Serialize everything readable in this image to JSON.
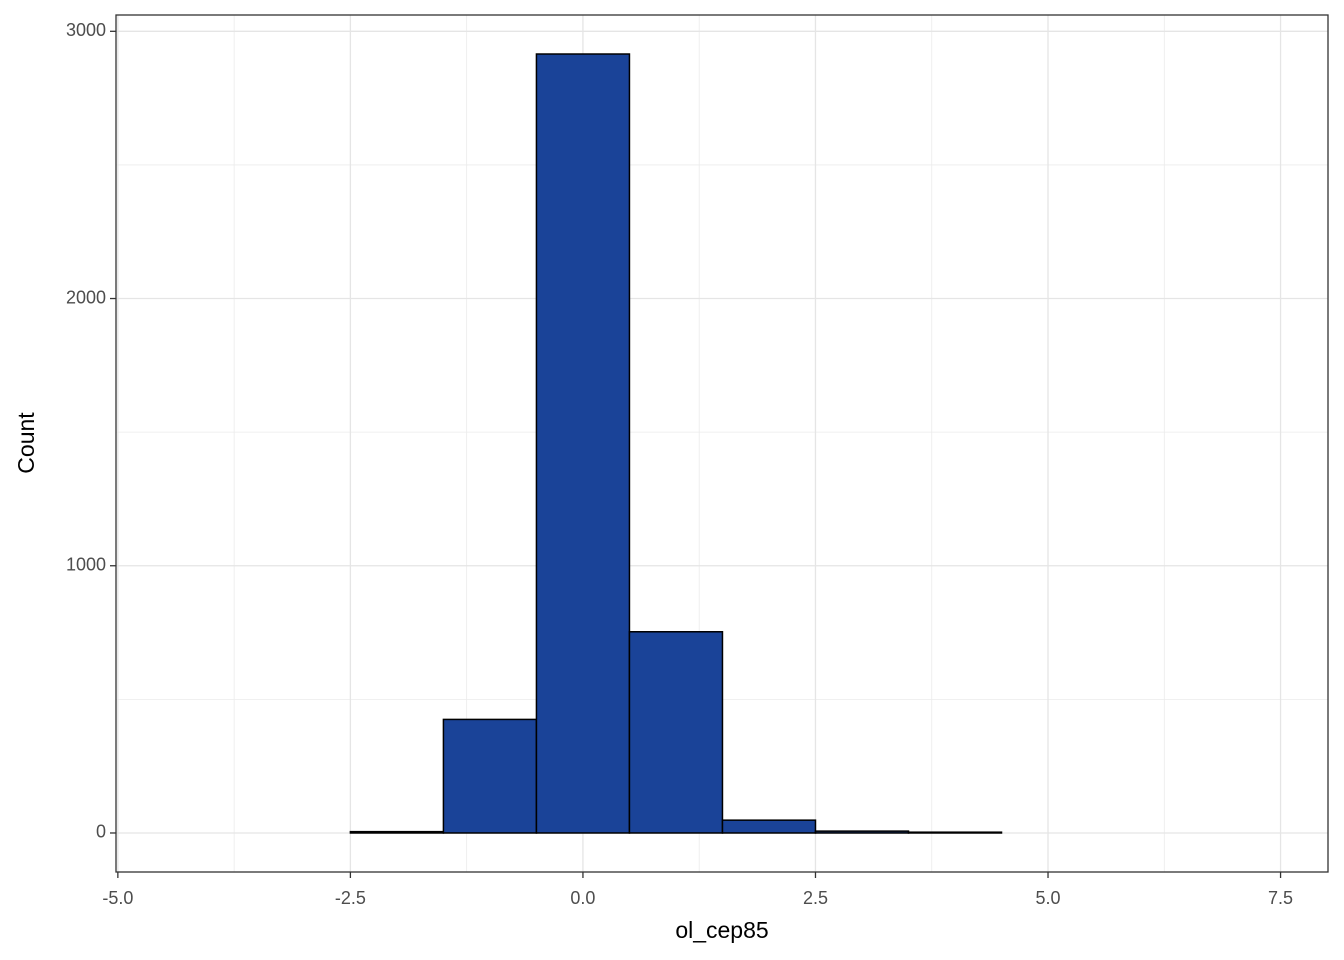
{
  "chart_data": {
    "type": "histogram",
    "x_label": "ol_cep85",
    "y_label": "Count",
    "bins": [
      -4.5,
      -3.5,
      -2.5,
      -1.5,
      -0.5,
      0.5,
      1.5,
      2.5,
      3.5,
      4.5,
      5.5,
      6.5,
      7.5
    ],
    "values": [
      0,
      0,
      5,
      425,
      2915,
      753,
      48,
      7,
      3,
      0,
      0,
      0
    ],
    "color": "#1a4398",
    "xlim": [
      -5.02,
      8.01
    ],
    "ylim": [
      -146,
      3061
    ],
    "xticks": [
      {
        "value": -5,
        "label": "-5.0"
      },
      {
        "value": -2.5,
        "label": "-2.5"
      },
      {
        "value": 0,
        "label": "0.0"
      },
      {
        "value": 2.5,
        "label": "2.5"
      },
      {
        "value": 5,
        "label": "5.0"
      },
      {
        "value": 7.5,
        "label": "7.5"
      }
    ],
    "yticks": [
      0,
      1000,
      2000,
      3000
    ],
    "minor_xticks": [
      -3.75,
      -1.25,
      1.25,
      3.75,
      6.25
    ],
    "minor_yticks": [
      500,
      1500,
      2500
    ],
    "grid": true
  }
}
